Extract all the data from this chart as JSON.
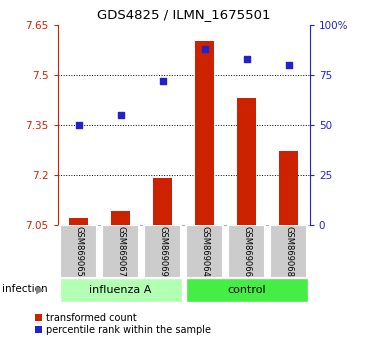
{
  "title": "GDS4825 / ILMN_1675501",
  "samples": [
    "GSM869065",
    "GSM869067",
    "GSM869069",
    "GSM869064",
    "GSM869066",
    "GSM869068"
  ],
  "transformed_count": [
    7.07,
    7.09,
    7.19,
    7.6,
    7.43,
    7.27
  ],
  "percentile_rank": [
    50,
    55,
    72,
    88,
    83,
    80
  ],
  "bar_color": "#cc2200",
  "dot_color": "#2222cc",
  "ymin": 7.05,
  "ymax": 7.65,
  "yticks": [
    7.05,
    7.2,
    7.35,
    7.5,
    7.65
  ],
  "ytick_labels": [
    "7.05",
    "7.2",
    "7.35",
    "7.5",
    "7.65"
  ],
  "right_yticks": [
    0,
    25,
    50,
    75,
    100
  ],
  "right_ytick_labels": [
    "0",
    "25",
    "50",
    "75",
    "100%"
  ],
  "bar_bottom": 7.05,
  "legend_items": [
    "transformed count",
    "percentile rank within the sample"
  ],
  "infection_label": "infection",
  "background_color": "#ffffff",
  "left_axis_color": "#cc2200",
  "right_axis_color": "#2222cc",
  "influenza_color": "#b3ffb3",
  "control_color": "#44ee44",
  "sample_box_color": "#cccccc",
  "bar_width": 0.45
}
